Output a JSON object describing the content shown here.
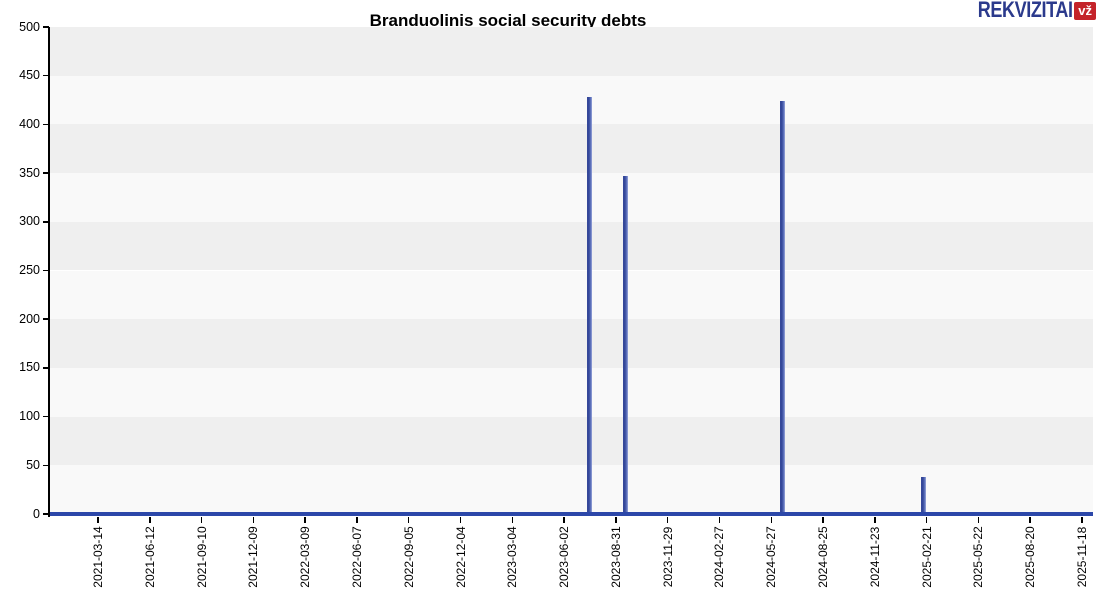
{
  "header": {
    "logo": {
      "text": "REKVIZITAI",
      "badge": "vž",
      "text_color": "#2b3a8c",
      "badge_bg": "#c4232a",
      "badge_text_color": "#ffffff"
    }
  },
  "chart_data": {
    "type": "line",
    "title": "Branduolinis social security debts",
    "xlabel": "",
    "ylabel": "",
    "ylim": [
      0,
      500
    ],
    "ytick_step": 50,
    "y_tick_labels": [
      "0",
      "50",
      "100",
      "150",
      "200",
      "250",
      "300",
      "350",
      "400",
      "450",
      "500"
    ],
    "x_tick_labels": [
      "2021-03-14",
      "2021-06-12",
      "2021-09-10",
      "2021-12-09",
      "2022-03-09",
      "2022-06-07",
      "2022-09-05",
      "2022-12-04",
      "2023-03-04",
      "2023-06-02",
      "2023-08-31",
      "2023-11-29",
      "2024-02-27",
      "2024-05-27",
      "2024-08-25",
      "2024-11-23",
      "2025-02-21",
      "2025-05-22",
      "2025-08-20",
      "2025-11-18"
    ],
    "x_domain": [
      "2021-03-14",
      "2025-11-18"
    ],
    "grid": "horizontal striped bands",
    "band_colors": [
      "#efefef",
      "#f9f9f9"
    ],
    "legend": "none",
    "series": [
      {
        "name": "Social security debt",
        "color": "#2c47a9",
        "baseline_value": 0,
        "spikes": [
          {
            "date": "2023-07-16",
            "value": 428
          },
          {
            "date": "2023-09-17",
            "value": 347
          },
          {
            "date": "2024-06-16",
            "value": 424
          },
          {
            "date": "2025-02-16",
            "value": 38
          }
        ]
      }
    ]
  }
}
